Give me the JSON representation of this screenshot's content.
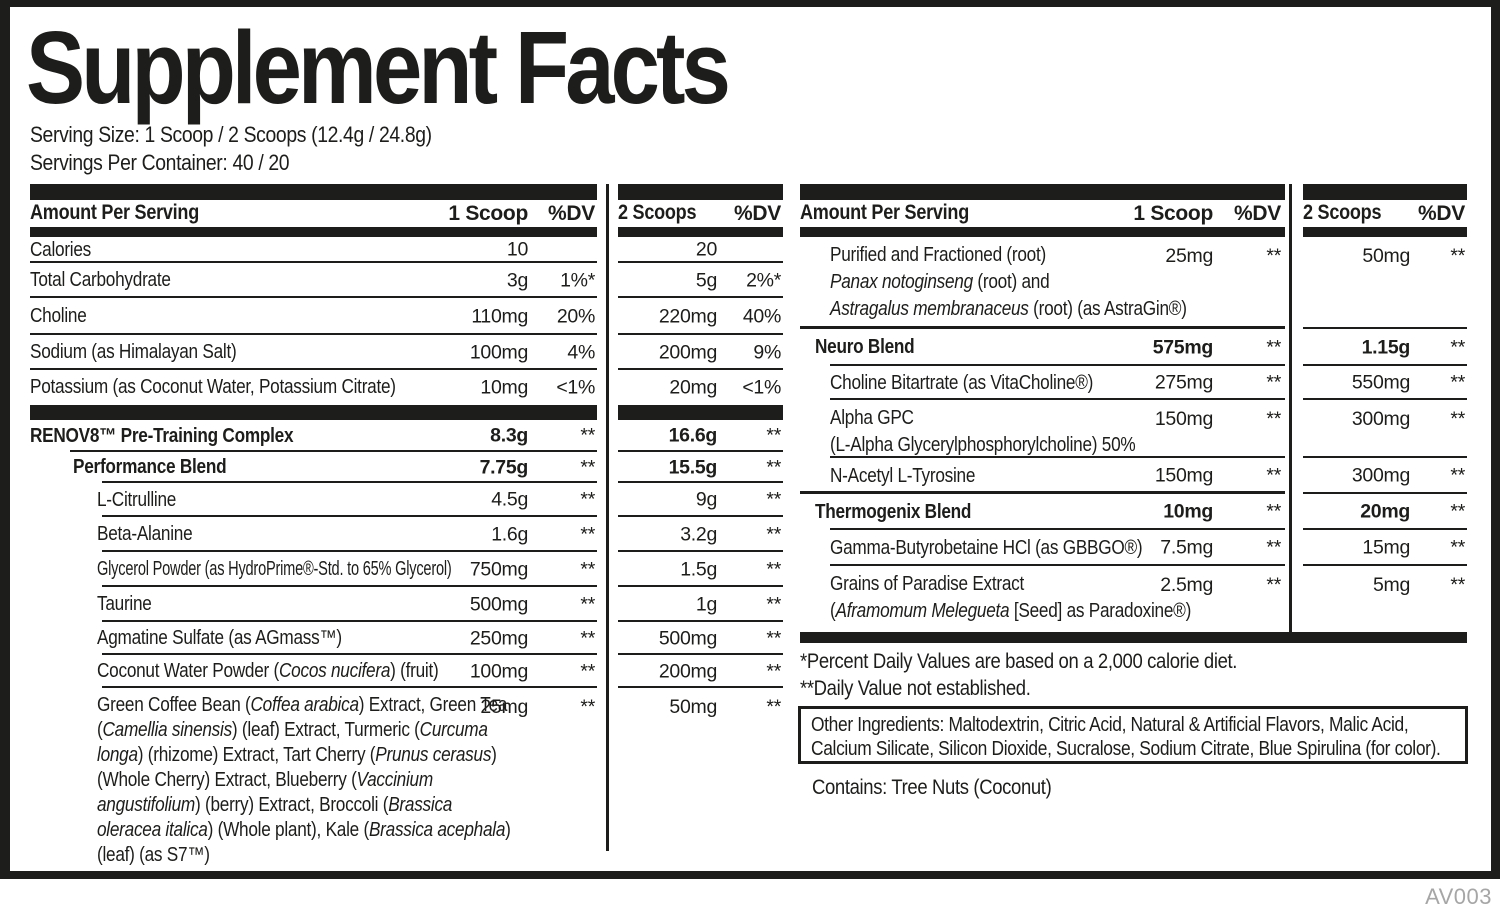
{
  "title": "Supplement Facts",
  "serving": {
    "size_line": "Serving Size: 1 Scoop / 2 Scoops (12.4g / 24.8g)",
    "container_line": "Servings Per Container: 40 / 20"
  },
  "colors": {
    "ink": "#1d1d1b",
    "code_gray": "#a6a6a6"
  },
  "t_left": {
    "header": {
      "label": "Amount Per Serving",
      "scoop": "1 Scoop",
      "dv": "%DV"
    },
    "rows": [
      {
        "name": "Calories",
        "amount": "10",
        "dv": ""
      },
      {
        "name": "Total Carbohydrate",
        "amount": "3g",
        "dv": "1%*"
      },
      {
        "name": "Choline",
        "amount": "110mg",
        "dv": "20%"
      },
      {
        "name": "Sodium (as Himalayan Salt)",
        "amount": "100mg",
        "dv": "4%"
      },
      {
        "name": "Potassium (as Coconut Water, Potassium Citrate)",
        "amount": "10mg",
        "dv": "<1%"
      },
      {
        "name": "RENOV8™ Pre-Training Complex",
        "amount": "8.3g",
        "dv": "**"
      },
      {
        "name": "Performance Blend",
        "amount": "7.75g",
        "dv": "**"
      },
      {
        "name": "L-Citrulline",
        "amount": "4.5g",
        "dv": "**"
      },
      {
        "name": "Beta-Alanine",
        "amount": "1.6g",
        "dv": "**"
      },
      {
        "name": "Glycerol Powder (as HydroPrime®-Std. to 65% Glycerol)",
        "amount": "750mg",
        "dv": "**"
      },
      {
        "name": "Taurine",
        "amount": "500mg",
        "dv": "**"
      },
      {
        "name": "Agmatine Sulfate (as AGmass™)",
        "amount": "250mg",
        "dv": "**"
      },
      {
        "segments": [
          {
            "t": "Coconut Water Powder ("
          },
          {
            "t": "Cocos nucifera",
            "i": true
          },
          {
            "t": ") (fruit)"
          }
        ],
        "amount": "100mg",
        "dv": "**"
      },
      {
        "segments": [
          {
            "t": "Green Coffee Bean ("
          },
          {
            "t": "Coffea arabica",
            "i": true
          },
          {
            "t": ") Extract, Green Tea ("
          },
          {
            "t": "Camellia sinensis",
            "i": true
          },
          {
            "t": ") (leaf) Extract, Turmeric ("
          },
          {
            "t": "Curcuma longa",
            "i": true
          },
          {
            "t": ") (rhizome) Extract, Tart Cherry ("
          },
          {
            "t": "Prunus cerasus",
            "i": true
          },
          {
            "t": ") (Whole Cherry) Extract, Blueberry ("
          },
          {
            "t": "Vaccinium angustifolium",
            "i": true
          },
          {
            "t": ") (berry) Extract, Broccoli ("
          },
          {
            "t": "Brassica oleracea italica",
            "i": true
          },
          {
            "t": ") (Whole plant), Kale ("
          },
          {
            "t": "Brassica acephala",
            "i": true
          },
          {
            "t": ") (leaf) (as S7™)"
          }
        ],
        "amount": "25mg",
        "dv": "**"
      }
    ]
  },
  "t_left2": {
    "header": {
      "scoop": "2 Scoops",
      "dv": "%DV"
    },
    "rows": [
      {
        "amount": "20",
        "dv": ""
      },
      {
        "amount": "5g",
        "dv": "2%*"
      },
      {
        "amount": "220mg",
        "dv": "40%"
      },
      {
        "amount": "200mg",
        "dv": "9%"
      },
      {
        "amount": "20mg",
        "dv": "<1%"
      },
      {
        "amount": "16.6g",
        "dv": "**"
      },
      {
        "amount": "15.5g",
        "dv": "**"
      },
      {
        "amount": "9g",
        "dv": "**"
      },
      {
        "amount": "3.2g",
        "dv": "**"
      },
      {
        "amount": "1.5g",
        "dv": "**"
      },
      {
        "amount": "1g",
        "dv": "**"
      },
      {
        "amount": "500mg",
        "dv": "**"
      },
      {
        "amount": "200mg",
        "dv": "**"
      },
      {
        "amount": "50mg",
        "dv": "**"
      }
    ]
  },
  "t_right": {
    "header": {
      "label": "Amount Per Serving",
      "scoop": "1 Scoop",
      "dv": "%DV"
    },
    "rows": [
      {
        "segments": [
          {
            "t": "Purified and Fractioned (root)\n"
          },
          {
            "t": "Panax notoginseng",
            "i": true
          },
          {
            "t": " (root) and\n"
          },
          {
            "t": "Astragalus membranaceus",
            "i": true
          },
          {
            "t": " (root) (as AstraGin®)"
          }
        ],
        "amount": "25mg",
        "dv": "**"
      },
      {
        "name": "Neuro Blend",
        "amount": "575mg",
        "dv": "**"
      },
      {
        "name": "Choline Bitartrate (as VitaCholine®)",
        "amount": "275mg",
        "dv": "**"
      },
      {
        "name": "Alpha GPC\n(L-Alpha Glycerylphosphorylcholine) 50%",
        "amount": "150mg",
        "dv": "**"
      },
      {
        "name": "N-Acetyl L-Tyrosine",
        "amount": "150mg",
        "dv": "**"
      },
      {
        "name": "Thermogenix Blend",
        "amount": "10mg",
        "dv": "**"
      },
      {
        "name": "Gamma-Butyrobetaine HCl (as GBBGO®)",
        "amount": "7.5mg",
        "dv": "**"
      },
      {
        "segments": [
          {
            "t": "Grains of Paradise Extract\n("
          },
          {
            "t": "Aframomum Melegueta",
            "i": true
          },
          {
            "t": " [Seed] as Paradoxine®)"
          }
        ],
        "amount": "2.5mg",
        "dv": "**"
      }
    ]
  },
  "t_right2": {
    "header": {
      "scoop": "2 Scoops",
      "dv": "%DV"
    },
    "rows": [
      {
        "amount": "50mg",
        "dv": "**"
      },
      {
        "amount": "1.15g",
        "dv": "**"
      },
      {
        "amount": "550mg",
        "dv": "**"
      },
      {
        "amount": "300mg",
        "dv": "**"
      },
      {
        "amount": "300mg",
        "dv": "**"
      },
      {
        "amount": "20mg",
        "dv": "**"
      },
      {
        "amount": "15mg",
        "dv": "**"
      },
      {
        "amount": "5mg",
        "dv": "**"
      }
    ]
  },
  "footnotes": {
    "percent_dv": "*Percent Daily Values are based on a 2,000 calorie diet.",
    "not_established": "**Daily Value not established."
  },
  "other_ingredients": "Other Ingredients: Maltodextrin, Citric Acid, Natural & Artificial Flavors, Malic Acid, Calcium Silicate, Silicon Dioxide, Sucralose, Sodium Citrate, Blue Spirulina (for color).",
  "allergen": "Contains: Tree Nuts (Coconut)",
  "footer_code": "AV003"
}
